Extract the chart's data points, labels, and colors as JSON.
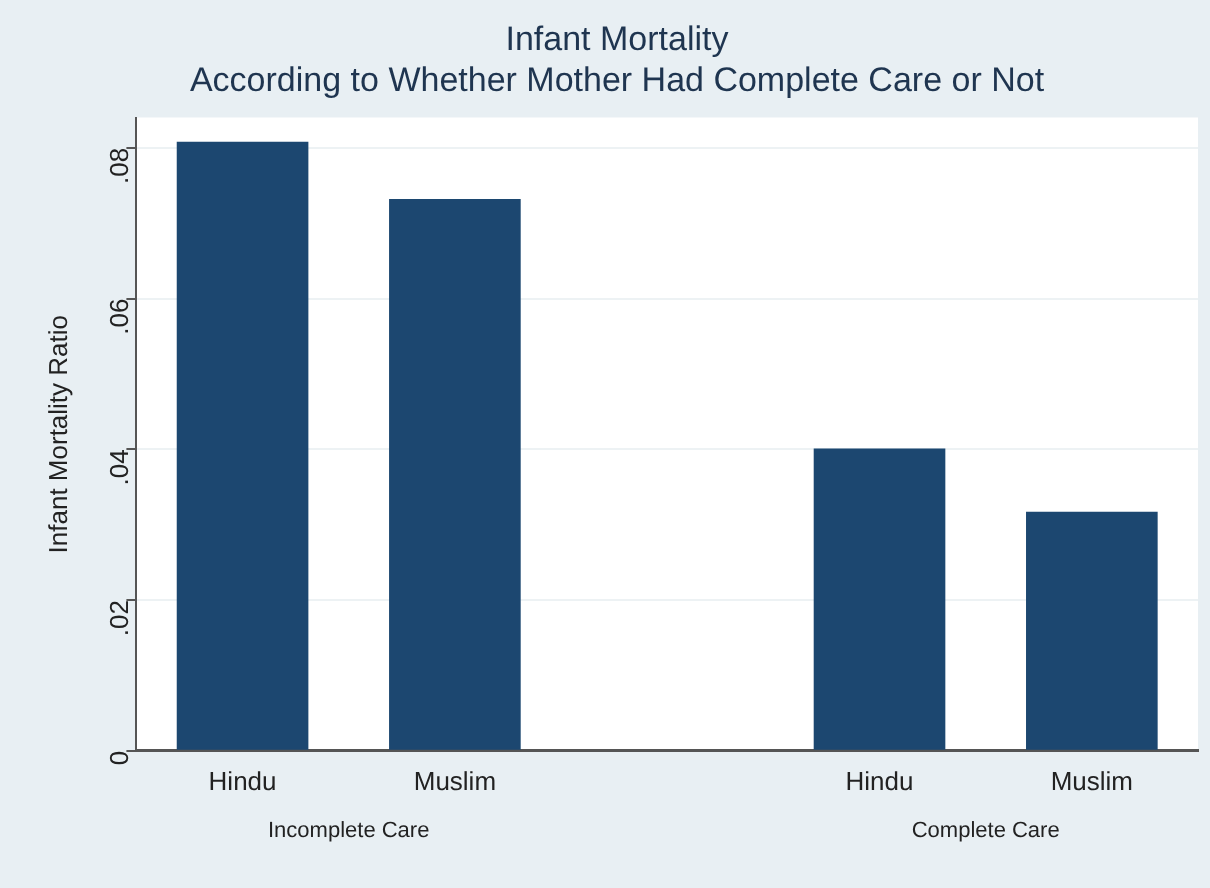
{
  "chart_data": {
    "type": "bar",
    "title": "Infant Mortality",
    "subtitle": "According to Whether Mother Had Complete Care or Not",
    "ylabel": "Infant Mortality Ratio",
    "categories": [
      "Hindu",
      "Muslim",
      null,
      "Hindu",
      "Muslim"
    ],
    "values": [
      0.0808,
      0.0732,
      null,
      0.0401,
      0.0317
    ],
    "color": "#1c4770",
    "ylim": [
      0,
      0.084
    ],
    "yticks": [
      {
        "value": 0,
        "label": "0"
      },
      {
        "value": 0.02,
        "label": ".02"
      },
      {
        "value": 0.04,
        "label": ".04"
      },
      {
        "value": 0.06,
        "label": ".06"
      },
      {
        "value": 0.08,
        "label": ".08"
      }
    ],
    "grid": "y",
    "annotations": [
      "Incomplete Care",
      "Complete Care"
    ]
  }
}
